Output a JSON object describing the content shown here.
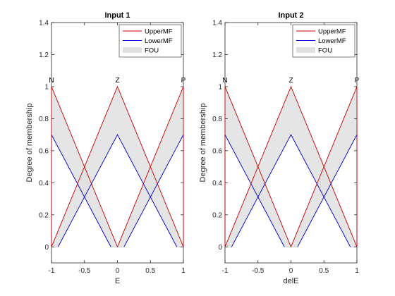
{
  "colors": {
    "upper": "#cc0000",
    "lower": "#0000cc",
    "fou": "#e0e0e0",
    "fou_edge": "#bdbdbd"
  },
  "chart_data": [
    {
      "type": "line",
      "title": "Input 1",
      "xlabel": "E",
      "ylabel": "Degree of membership",
      "xlim": [
        -1,
        1
      ],
      "ylim": [
        -0.1,
        1.4
      ],
      "xticks": [
        "-1",
        "-0.5",
        "0",
        "0.5",
        "1"
      ],
      "xtick_values": [
        -1,
        -0.5,
        0,
        0.5,
        1
      ],
      "yticks": [
        "0",
        "0.2",
        "0.4",
        "0.6",
        "0.8",
        "1",
        "1.2",
        "1.4"
      ],
      "ytick_values": [
        0,
        0.2,
        0.4,
        0.6,
        0.8,
        1,
        1.2,
        1.4
      ],
      "grid": false,
      "legend": {
        "position": "top-right",
        "entries": [
          "UpperMF",
          "LowerMF",
          "FOU"
        ]
      },
      "membership_functions": [
        {
          "name": "N",
          "label_x": -1,
          "upper": {
            "x": [
              -1,
              -1,
              0
            ],
            "y": [
              0,
              1,
              0
            ]
          },
          "lower": {
            "x": [
              -1,
              -1,
              -0.1
            ],
            "y": [
              0,
              0.7,
              0
            ]
          }
        },
        {
          "name": "Z",
          "label_x": 0,
          "upper": {
            "x": [
              -1,
              0,
              1
            ],
            "y": [
              0,
              1,
              0
            ]
          },
          "lower": {
            "x": [
              -0.9,
              0,
              0.9
            ],
            "y": [
              0,
              0.7,
              0
            ]
          }
        },
        {
          "name": "P",
          "label_x": 1,
          "upper": {
            "x": [
              0,
              1,
              1
            ],
            "y": [
              0,
              1,
              0
            ]
          },
          "lower": {
            "x": [
              0.1,
              1,
              1
            ],
            "y": [
              0,
              0.7,
              0
            ]
          }
        }
      ]
    },
    {
      "type": "line",
      "title": "Input 2",
      "xlabel": "delE",
      "ylabel": "Degree of membership",
      "xlim": [
        -1,
        1
      ],
      "ylim": [
        -0.1,
        1.4
      ],
      "xticks": [
        "-1",
        "-0.5",
        "0",
        "0.5",
        "1"
      ],
      "xtick_values": [
        -1,
        -0.5,
        0,
        0.5,
        1
      ],
      "yticks": [
        "0",
        "0.2",
        "0.4",
        "0.6",
        "0.8",
        "1",
        "1.2",
        "1.4"
      ],
      "ytick_values": [
        0,
        0.2,
        0.4,
        0.6,
        0.8,
        1,
        1.2,
        1.4
      ],
      "grid": false,
      "legend": {
        "position": "top-right",
        "entries": [
          "UpperMF",
          "LowerMF",
          "FOU"
        ]
      },
      "membership_functions": [
        {
          "name": "N",
          "label_x": -1,
          "upper": {
            "x": [
              -1,
              -1,
              0
            ],
            "y": [
              0,
              1,
              0
            ]
          },
          "lower": {
            "x": [
              -1,
              -1,
              -0.1
            ],
            "y": [
              0,
              0.7,
              0
            ]
          }
        },
        {
          "name": "Z",
          "label_x": 0,
          "upper": {
            "x": [
              -1,
              0,
              1
            ],
            "y": [
              0,
              1,
              0
            ]
          },
          "lower": {
            "x": [
              -0.9,
              0,
              0.9
            ],
            "y": [
              0,
              0.7,
              0
            ]
          }
        },
        {
          "name": "P",
          "label_x": 1,
          "upper": {
            "x": [
              0,
              1,
              1
            ],
            "y": [
              0,
              1,
              0
            ]
          },
          "lower": {
            "x": [
              0.1,
              1,
              1
            ],
            "y": [
              0,
              0.7,
              0
            ]
          }
        }
      ]
    }
  ]
}
